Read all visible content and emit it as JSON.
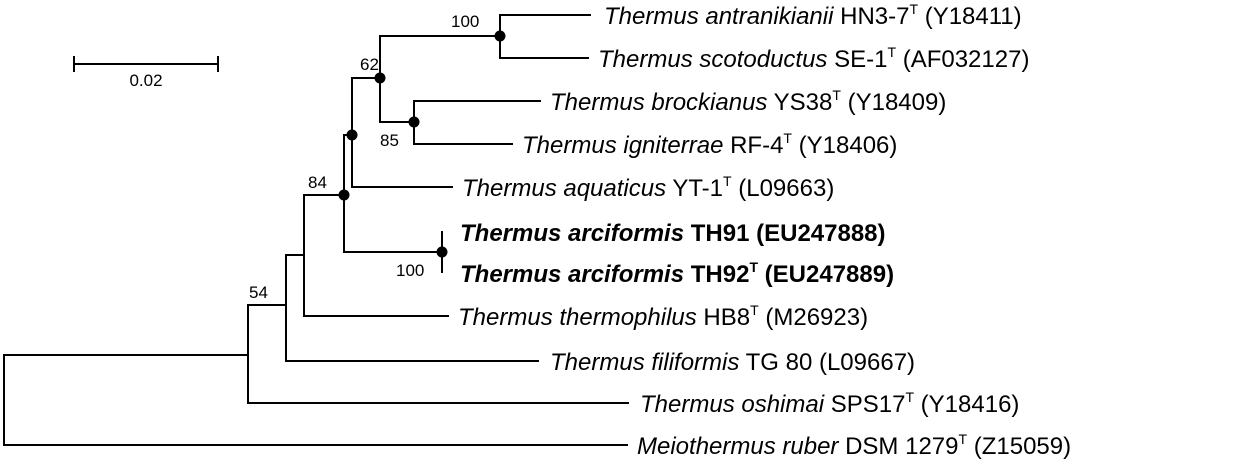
{
  "scale_bar": {
    "label": "0.02"
  },
  "taxa": [
    {
      "id": "antranikianii",
      "species": "Thermus antranikianii",
      "strain": "HN3-7",
      "type_strain": true,
      "accession": "(Y18411)",
      "bold": false
    },
    {
      "id": "scotoductus",
      "species": "Thermus scotoductus",
      "strain": "SE-1",
      "type_strain": true,
      "accession": "(AF032127)",
      "bold": false
    },
    {
      "id": "brockianus",
      "species": "Thermus brockianus",
      "strain": "YS38",
      "type_strain": true,
      "accession": "(Y18409)",
      "bold": false
    },
    {
      "id": "igniterrae",
      "species": "Thermus igniterrae",
      "strain": "RF-4",
      "type_strain": true,
      "accession": "(Y18406)",
      "bold": false
    },
    {
      "id": "aquaticus",
      "species": "Thermus aquaticus",
      "strain": "YT-1",
      "type_strain": true,
      "accession": "(L09663)",
      "bold": false
    },
    {
      "id": "arciformis91",
      "species": "Thermus arciformis",
      "strain": "TH91",
      "type_strain": false,
      "accession": "(EU247888)",
      "bold": true
    },
    {
      "id": "arciformis92",
      "species": "Thermus arciformis",
      "strain": "TH92",
      "type_strain": true,
      "accession": "(EU247889)",
      "bold": true
    },
    {
      "id": "thermophilus",
      "species": "Thermus thermophilus",
      "strain": "HB8",
      "type_strain": true,
      "accession": "(M26923)",
      "bold": false
    },
    {
      "id": "filiformis",
      "species": "Thermus filiformis",
      "strain": "TG 80",
      "type_strain": false,
      "accession": "(L09667)",
      "bold": false
    },
    {
      "id": "oshimai",
      "species": "Thermus oshimai",
      "strain": "SPS17",
      "type_strain": true,
      "accession": "(Y18416)",
      "bold": false
    },
    {
      "id": "ruber",
      "species": "Meiothermus ruber",
      "strain": "DSM 1279",
      "type_strain": true,
      "accession": "(Z15059)",
      "bold": false
    }
  ],
  "type_marker": "T",
  "bootstrap": {
    "antranikianii_scotoductus": "100",
    "core_clade": "62",
    "brockianus_igniterrae": "85",
    "aquaticus_group": "84",
    "arciformis": "100",
    "thermus_minus_oshimai": "54"
  }
}
